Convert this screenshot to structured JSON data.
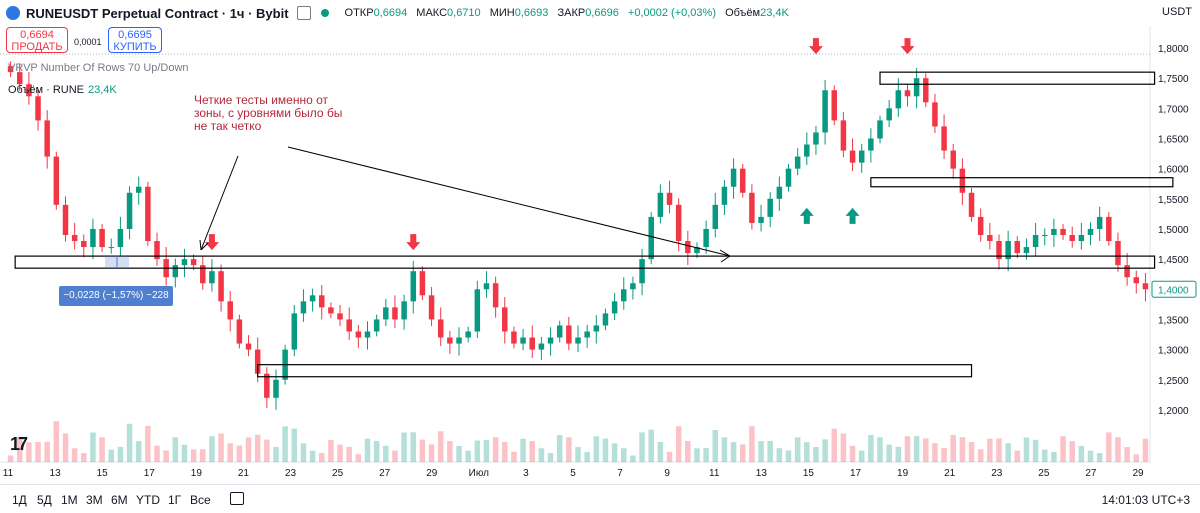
{
  "header": {
    "symbol": "RUNEUSDT Perpetual Contract · 1ч · Bybit",
    "open_label": "ОТКР",
    "open": "0,6694",
    "high_label": "МАКС",
    "high": "0,6710",
    "low_label": "МИН",
    "low": "0,6693",
    "close_label": "ЗАКР",
    "close": "0,6696",
    "change": "+0,0002 (+0,03%)",
    "volume_label": "Объём",
    "volume": "23,4K",
    "currency": "USDT"
  },
  "trade": {
    "sell_price": "0,6694",
    "sell_label": "ПРОДАТЬ",
    "spread": "0,0001",
    "buy_price": "0,6695",
    "buy_label": "КУПИТЬ"
  },
  "indicators": {
    "vrvp": "VRVP Number Of Rows 70 Up/Down",
    "volume_label": "Объём · RUNE",
    "volume_value": "23,4K"
  },
  "annotation": "Четкие тесты именно от зоны, с уровнями было бы не так четко",
  "measure": "−0,0228 (−1,57%) −228",
  "timeframes": [
    "1Д",
    "5Д",
    "1М",
    "3М",
    "6М",
    "YTD",
    "1Г",
    "Все"
  ],
  "clock": "14:01:03 UTC+3",
  "colors": {
    "up": "#089981",
    "down": "#f23645",
    "arrow_down": "#f23645",
    "arrow_up": "#089981",
    "zone": "#000000",
    "text_annot": "#b2283a"
  },
  "chart_data": {
    "type": "candlestick",
    "y_axis": {
      "ticks": [
        "1,8000",
        "1,7500",
        "1,7000",
        "1,6500",
        "1,6000",
        "1,5500",
        "1,5000",
        "1,4500",
        "1,4000",
        "1,3500",
        "1,3000",
        "1,2500",
        "1,2000"
      ],
      "min": 1.17,
      "max": 1.81
    },
    "x_axis": {
      "ticks": [
        "11",
        "13",
        "15",
        "17",
        "19",
        "21",
        "23",
        "25",
        "27",
        "29",
        "Июл",
        "3",
        "5",
        "7",
        "9",
        "11",
        "13",
        "15",
        "17",
        "19",
        "21",
        "23",
        "25",
        "27",
        "29"
      ]
    },
    "current_price": "1,4000",
    "close_path": [
      [
        0,
        1.76
      ],
      [
        2,
        1.72
      ],
      [
        3,
        1.68
      ],
      [
        4,
        1.62
      ],
      [
        5,
        1.54
      ],
      [
        6,
        1.49
      ],
      [
        7,
        1.48
      ],
      [
        8,
        1.47
      ],
      [
        9,
        1.5
      ],
      [
        10,
        1.47
      ],
      [
        11,
        1.47
      ],
      [
        12,
        1.5
      ],
      [
        13,
        1.56
      ],
      [
        14,
        1.57
      ],
      [
        15,
        1.48
      ],
      [
        16,
        1.45
      ],
      [
        17,
        1.42
      ],
      [
        18,
        1.44
      ],
      [
        19,
        1.45
      ],
      [
        20,
        1.44
      ],
      [
        21,
        1.41
      ],
      [
        22,
        1.43
      ],
      [
        23,
        1.38
      ],
      [
        24,
        1.35
      ],
      [
        25,
        1.31
      ],
      [
        26,
        1.3
      ],
      [
        27,
        1.26
      ],
      [
        28,
        1.22
      ],
      [
        29,
        1.25
      ],
      [
        30,
        1.3
      ],
      [
        31,
        1.36
      ],
      [
        32,
        1.38
      ],
      [
        33,
        1.39
      ],
      [
        34,
        1.37
      ],
      [
        35,
        1.36
      ],
      [
        36,
        1.35
      ],
      [
        37,
        1.33
      ],
      [
        38,
        1.32
      ],
      [
        39,
        1.33
      ],
      [
        40,
        1.35
      ],
      [
        41,
        1.37
      ],
      [
        42,
        1.35
      ],
      [
        43,
        1.38
      ],
      [
        44,
        1.43
      ],
      [
        45,
        1.39
      ],
      [
        46,
        1.35
      ],
      [
        47,
        1.32
      ],
      [
        48,
        1.31
      ],
      [
        49,
        1.32
      ],
      [
        50,
        1.33
      ],
      [
        51,
        1.4
      ],
      [
        52,
        1.41
      ],
      [
        53,
        1.37
      ],
      [
        54,
        1.33
      ],
      [
        55,
        1.31
      ],
      [
        56,
        1.32
      ],
      [
        57,
        1.3
      ],
      [
        58,
        1.31
      ],
      [
        59,
        1.32
      ],
      [
        60,
        1.34
      ],
      [
        61,
        1.31
      ],
      [
        62,
        1.32
      ],
      [
        63,
        1.33
      ],
      [
        64,
        1.34
      ],
      [
        65,
        1.36
      ],
      [
        66,
        1.38
      ],
      [
        67,
        1.4
      ],
      [
        68,
        1.41
      ],
      [
        69,
        1.45
      ],
      [
        70,
        1.52
      ],
      [
        71,
        1.56
      ],
      [
        72,
        1.54
      ],
      [
        73,
        1.48
      ],
      [
        74,
        1.46
      ],
      [
        75,
        1.47
      ],
      [
        76,
        1.5
      ],
      [
        77,
        1.54
      ],
      [
        78,
        1.57
      ],
      [
        79,
        1.6
      ],
      [
        80,
        1.56
      ],
      [
        81,
        1.51
      ],
      [
        82,
        1.52
      ],
      [
        83,
        1.55
      ],
      [
        84,
        1.57
      ],
      [
        85,
        1.6
      ],
      [
        86,
        1.62
      ],
      [
        87,
        1.64
      ],
      [
        88,
        1.66
      ],
      [
        89,
        1.73
      ],
      [
        90,
        1.68
      ],
      [
        91,
        1.63
      ],
      [
        92,
        1.61
      ],
      [
        93,
        1.63
      ],
      [
        94,
        1.65
      ],
      [
        95,
        1.68
      ],
      [
        96,
        1.7
      ],
      [
        97,
        1.73
      ],
      [
        98,
        1.72
      ],
      [
        99,
        1.75
      ],
      [
        100,
        1.71
      ],
      [
        101,
        1.67
      ],
      [
        102,
        1.63
      ],
      [
        103,
        1.6
      ],
      [
        104,
        1.56
      ],
      [
        105,
        1.52
      ],
      [
        106,
        1.49
      ],
      [
        107,
        1.48
      ],
      [
        108,
        1.45
      ],
      [
        109,
        1.48
      ],
      [
        110,
        1.46
      ],
      [
        111,
        1.47
      ],
      [
        112,
        1.49
      ],
      [
        113,
        1.49
      ],
      [
        114,
        1.5
      ],
      [
        115,
        1.49
      ],
      [
        116,
        1.48
      ],
      [
        117,
        1.49
      ],
      [
        118,
        1.5
      ],
      [
        119,
        1.52
      ],
      [
        120,
        1.48
      ],
      [
        121,
        1.44
      ],
      [
        122,
        1.42
      ],
      [
        123,
        1.41
      ],
      [
        124,
        1.4
      ]
    ],
    "zones": [
      {
        "x0": 0.5,
        "x1": 125,
        "y0": 1.435,
        "y1": 1.455
      },
      {
        "x0": 27,
        "x1": 105,
        "y0": 1.255,
        "y1": 1.275
      },
      {
        "x0": 94,
        "x1": 127,
        "y0": 1.57,
        "y1": 1.585
      },
      {
        "x0": 95,
        "x1": 125,
        "y0": 1.74,
        "y1": 1.76
      }
    ],
    "down_arrows": [
      [
        22,
        1.465
      ],
      [
        44,
        1.465
      ],
      [
        88,
        1.79
      ],
      [
        98,
        1.79
      ]
    ],
    "up_arrows": [
      [
        87,
        1.535
      ],
      [
        92,
        1.535
      ]
    ]
  }
}
